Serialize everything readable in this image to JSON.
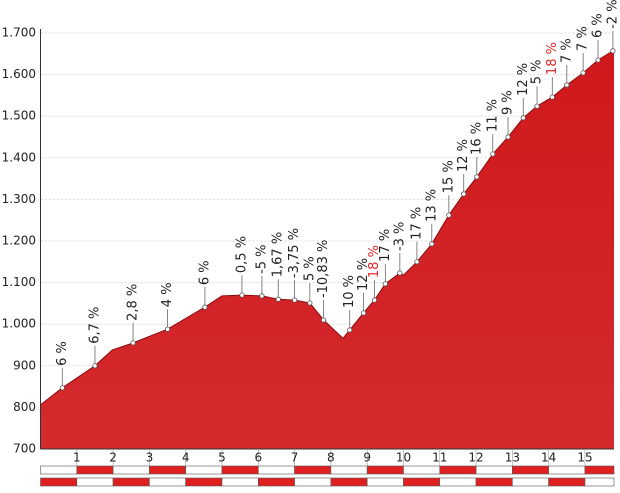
{
  "chart_data": {
    "type": "area",
    "x": [
      0,
      0.6,
      1.5,
      1.98,
      2.55,
      3.5,
      4.53,
      5.0,
      5.55,
      6.1,
      6.55,
      7.0,
      7.42,
      7.8,
      8.33,
      8.52,
      8.9,
      9.2,
      9.5,
      9.9,
      10.0,
      10.37,
      10.78,
      11.25,
      11.66,
      12.02,
      12.46,
      12.88,
      13.3,
      13.68,
      14.1,
      14.5,
      14.95,
      15.36,
      15.77,
      15.8
    ],
    "values": [
      806,
      847,
      900,
      938,
      955,
      988,
      1041,
      1068,
      1070,
      1068,
      1060,
      1058,
      1051,
      1010,
      966,
      986,
      1027,
      1058,
      1097,
      1123,
      1118,
      1150,
      1193,
      1262,
      1313,
      1354,
      1409,
      1450,
      1496,
      1524,
      1546,
      1575,
      1604,
      1635,
      1657,
      1660
    ],
    "color": "#d0181c",
    "markers": [
      {
        "km": 0.6,
        "elevation": 847,
        "label": "6 %",
        "color": "#222222"
      },
      {
        "km": 1.5,
        "elevation": 900,
        "label": "6,7 %",
        "color": "#222222"
      },
      {
        "km": 2.55,
        "elevation": 955,
        "label": "2,8 %",
        "color": "#222222"
      },
      {
        "km": 3.5,
        "elevation": 988,
        "label": "4 %",
        "color": "#222222"
      },
      {
        "km": 4.53,
        "elevation": 1041,
        "label": "6 %",
        "color": "#222222"
      },
      {
        "km": 5.55,
        "elevation": 1070,
        "label": "0,5 %",
        "color": "#222222"
      },
      {
        "km": 6.1,
        "elevation": 1068,
        "label": "-5 %",
        "color": "#222222"
      },
      {
        "km": 6.55,
        "elevation": 1060,
        "label": "1,67 %",
        "color": "#222222"
      },
      {
        "km": 7.0,
        "elevation": 1058,
        "label": "-3,75 %",
        "color": "#222222"
      },
      {
        "km": 7.42,
        "elevation": 1051,
        "label": "5 %",
        "color": "#222222"
      },
      {
        "km": 7.8,
        "elevation": 1010,
        "label": "-10,83 %",
        "color": "#222222"
      },
      {
        "km": 8.52,
        "elevation": 986,
        "label": "10 %",
        "color": "#222222"
      },
      {
        "km": 8.9,
        "elevation": 1027,
        "label": "12 %",
        "color": "#222222"
      },
      {
        "km": 9.2,
        "elevation": 1058,
        "label": "18 %",
        "color": "#e02a2a"
      },
      {
        "km": 9.5,
        "elevation": 1097,
        "label": "17 %",
        "color": "#222222"
      },
      {
        "km": 9.9,
        "elevation": 1123,
        "label": "-3 %",
        "color": "#222222"
      },
      {
        "km": 10.37,
        "elevation": 1150,
        "label": "17 %",
        "color": "#222222"
      },
      {
        "km": 10.78,
        "elevation": 1193,
        "label": "13 %",
        "color": "#222222"
      },
      {
        "km": 11.25,
        "elevation": 1262,
        "label": "15 %",
        "color": "#222222"
      },
      {
        "km": 11.66,
        "elevation": 1313,
        "label": "12 %",
        "color": "#222222"
      },
      {
        "km": 12.02,
        "elevation": 1354,
        "label": "16 %",
        "color": "#222222"
      },
      {
        "km": 12.46,
        "elevation": 1409,
        "label": "11 %",
        "color": "#222222"
      },
      {
        "km": 12.88,
        "elevation": 1450,
        "label": "9 %",
        "color": "#222222"
      },
      {
        "km": 13.3,
        "elevation": 1496,
        "label": "12 %",
        "color": "#222222"
      },
      {
        "km": 13.68,
        "elevation": 1524,
        "label": "5 %",
        "color": "#222222"
      },
      {
        "km": 14.1,
        "elevation": 1546,
        "label": "18 %",
        "color": "#e02a2a"
      },
      {
        "km": 14.5,
        "elevation": 1575,
        "label": "7 %",
        "color": "#222222"
      },
      {
        "km": 14.95,
        "elevation": 1604,
        "label": "7 %",
        "color": "#222222"
      },
      {
        "km": 15.36,
        "elevation": 1635,
        "label": "6 %",
        "color": "#222222"
      },
      {
        "km": 15.77,
        "elevation": 1657,
        "label": "-2 %",
        "color": "#222222"
      }
    ],
    "xlim": [
      0,
      15.8
    ],
    "xticks": [
      1,
      2,
      3,
      4,
      5,
      6,
      7,
      8,
      9,
      10,
      11,
      12,
      13,
      14,
      15
    ],
    "ylim": [
      700,
      1700
    ],
    "yticks": [
      700,
      800,
      900,
      {
        "value": 1000,
        "label": "1.000"
      },
      {
        "value": 1100,
        "label": "1.100"
      },
      {
        "value": 1200,
        "label": "1.200"
      },
      {
        "value": 1300,
        "label": "1.300"
      },
      {
        "value": 1400,
        "label": "1.400"
      },
      {
        "value": 1500,
        "label": "1.500"
      },
      {
        "value": 1600,
        "label": "1.600"
      },
      {
        "value": 1700,
        "label": "1.700"
      }
    ],
    "grid": true
  }
}
